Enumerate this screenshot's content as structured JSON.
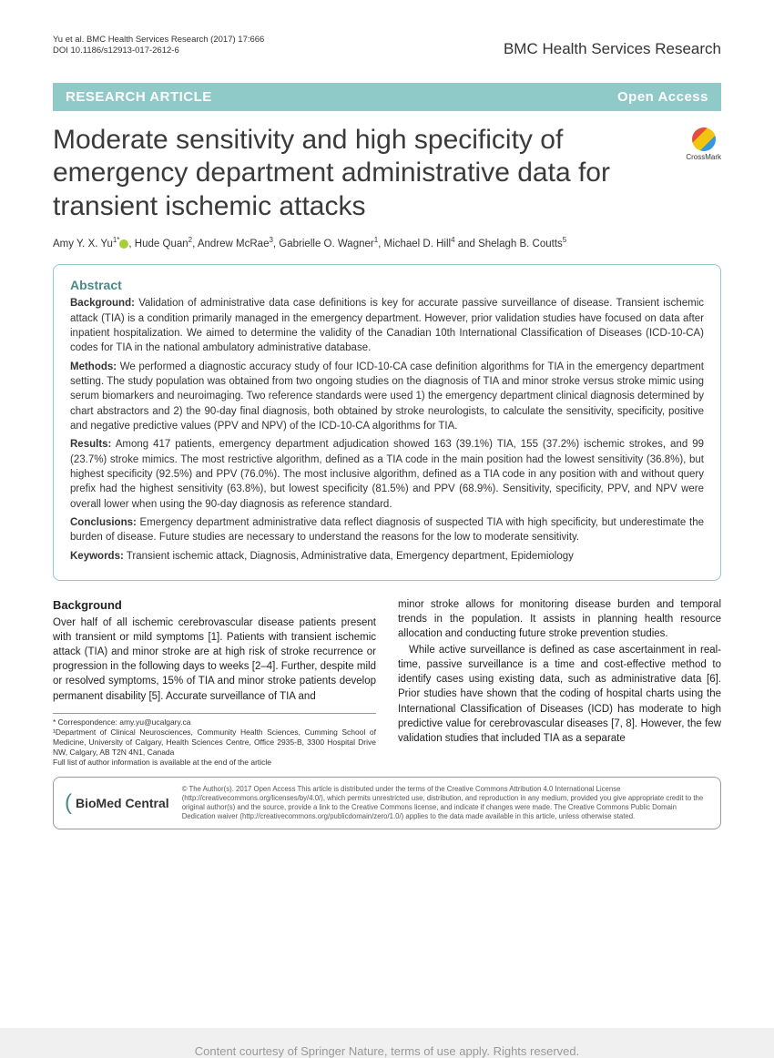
{
  "header": {
    "citation": "Yu et al. BMC Health Services Research  (2017) 17:666",
    "doi": "DOI 10.1186/s12913-017-2612-6",
    "journal": "BMC Health Services Research"
  },
  "banner": {
    "left": "RESEARCH ARTICLE",
    "right": "Open Access"
  },
  "title": "Moderate sensitivity and high specificity of emergency department administrative data for transient ischemic attacks",
  "crossmark": "CrossMark",
  "authors_html": "Amy Y. X. Yu<sup>1*</sup><span class=\"orcid\"></span>, Hude Quan<sup>2</sup>, Andrew McRae<sup>3</sup>, Gabrielle O. Wagner<sup>1</sup>, Michael D. Hill<sup>4</sup> and Shelagh B. Coutts<sup>5</sup>",
  "abstract": {
    "heading": "Abstract",
    "background_label": "Background:",
    "background": "Validation of administrative data case definitions is key for accurate passive surveillance of disease. Transient ischemic attack (TIA) is a condition primarily managed in the emergency department. However, prior validation studies have focused on data after inpatient hospitalization. We aimed to determine the validity of the Canadian 10th International Classification of Diseases (ICD-10-CA) codes for TIA in the national ambulatory administrative database.",
    "methods_label": "Methods:",
    "methods": "We performed a diagnostic accuracy study of four ICD-10-CA case definition algorithms for TIA in the emergency department setting. The study population was obtained from two ongoing studies on the diagnosis of TIA and minor stroke versus stroke mimic using serum biomarkers and neuroimaging. Two reference standards were used 1) the emergency department clinical diagnosis determined by chart abstractors and 2) the 90-day final diagnosis, both obtained by stroke neurologists, to calculate the sensitivity, specificity, positive and negative predictive values (PPV and NPV) of the ICD-10-CA algorithms for TIA.",
    "results_label": "Results:",
    "results": "Among 417 patients, emergency department adjudication showed 163 (39.1%) TIA, 155 (37.2%) ischemic strokes, and 99 (23.7%) stroke mimics. The most restrictive algorithm, defined as a TIA code in the main position had the lowest sensitivity (36.8%), but highest specificity (92.5%) and PPV (76.0%). The most inclusive algorithm, defined as a TIA code in any position with and without query prefix had the highest sensitivity (63.8%), but lowest specificity (81.5%) and PPV (68.9%). Sensitivity, specificity, PPV, and NPV were overall lower when using the 90-day diagnosis as reference standard.",
    "conclusions_label": "Conclusions:",
    "conclusions": "Emergency department administrative data reflect diagnosis of suspected TIA with high specificity, but underestimate the burden of disease. Future studies are necessary to understand the reasons for the low to moderate sensitivity.",
    "keywords_label": "Keywords:",
    "keywords": "Transient ischemic attack, Diagnosis, Administrative data, Emergency department, Epidemiology"
  },
  "body": {
    "heading": "Background",
    "col1_p1": "Over half of all ischemic cerebrovascular disease patients present with transient or mild symptoms [1]. Patients with transient ischemic attack (TIA) and minor stroke are at high risk of stroke recurrence or progression in the following days to weeks [2–4]. Further, despite mild or resolved symptoms, 15% of TIA and minor stroke patients develop permanent disability [5]. Accurate surveillance of TIA and",
    "col2_p1": "minor stroke allows for monitoring disease burden and temporal trends in the population. It assists in planning health resource allocation and conducting future stroke prevention studies.",
    "col2_p2": "While active surveillance is defined as case ascertainment in real-time, passive surveillance is a time and cost-effective method to identify cases using existing data, such as administrative data [6]. Prior studies have shown that the coding of hospital charts using the International Classification of Diseases (ICD) has moderate to high predictive value for cerebrovascular diseases [7, 8]. However, the few validation studies that included TIA as a separate"
  },
  "correspondence": {
    "line1": "* Correspondence: amy.yu@ucalgary.ca",
    "line2": "¹Department of Clinical Neurosciences, Community Health Sciences, Cumming School of Medicine, University of Calgary, Health Sciences Centre, Office 2935-B, 3300 Hospital Drive NW, Calgary, AB T2N 4N1, Canada",
    "line3": "Full list of author information is available at the end of the article"
  },
  "footer": {
    "logo": "BioMed Central",
    "license": "© The Author(s). 2017 Open Access This article is distributed under the terms of the Creative Commons Attribution 4.0 International License (http://creativecommons.org/licenses/by/4.0/), which permits unrestricted use, distribution, and reproduction in any medium, provided you give appropriate credit to the original author(s) and the source, provide a link to the Creative Commons license, and indicate if changes were made. The Creative Commons Public Domain Dedication waiver (http://creativecommons.org/publicdomain/zero/1.0/) applies to the data made available in this article, unless otherwise stated."
  },
  "watermark": "Content courtesy of Springer Nature, terms of use apply. Rights reserved."
}
